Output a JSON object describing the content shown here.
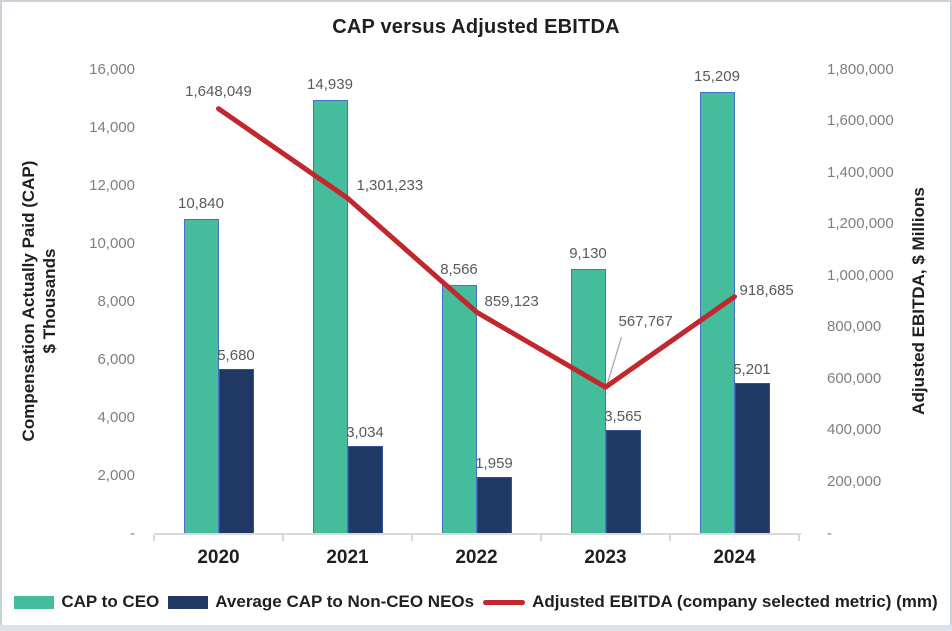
{
  "title": "CAP versus Adjusted EBITDA",
  "colors": {
    "ceo_bar": "#45BD9C",
    "ceo_bar_border": "#4472C4",
    "neo_bar": "#1F3864",
    "neo_bar_border": "#31539B",
    "ebitda_line": "#C2272D",
    "tick_label": "#7F7F7F",
    "data_label": "#595959",
    "axis_line": "#D9D9D9",
    "leader_line": "#ABABAB"
  },
  "left_axis": {
    "title_line1": "Compensation Actually Paid (CAP)",
    "title_line2": "$ Thousands",
    "tick_labels": [
      "16,000",
      "14,000",
      "12,000",
      "10,000",
      "8,000",
      "6,000",
      "4,000",
      "2,000",
      "-"
    ]
  },
  "right_axis": {
    "title": "Adjusted EBITDA, $ Millions",
    "tick_labels": [
      "1,800,000",
      "1,600,000",
      "1,400,000",
      "1,200,000",
      "1,000,000",
      "800,000",
      "600,000",
      "400,000",
      "200,000",
      "-"
    ]
  },
  "legend": {
    "items": [
      {
        "label": "CAP to CEO",
        "swatch": "bar",
        "color": "#45BD9C"
      },
      {
        "label": "Average CAP to Non-CEO NEOs",
        "swatch": "bar",
        "color": "#1F3864"
      },
      {
        "label": "Adjusted EBITDA (company selected metric) (mm)",
        "swatch": "line",
        "color": "#C2272D"
      }
    ]
  },
  "chart_data": {
    "type": "bar",
    "subtype": "combo-bar-line-dual-axis",
    "title": "CAP versus Adjusted EBITDA",
    "categories": [
      "2020",
      "2021",
      "2022",
      "2023",
      "2024"
    ],
    "series": [
      {
        "name": "CAP to CEO",
        "type": "bar",
        "axis": "left",
        "values": [
          10840,
          14939,
          8566,
          9130,
          15209
        ],
        "labels": [
          "10,840",
          "14,939",
          "8,566",
          "9,130",
          "15,209"
        ]
      },
      {
        "name": "Average CAP to Non-CEO NEOs",
        "type": "bar",
        "axis": "left",
        "values": [
          5680,
          3034,
          1959,
          3565,
          5201
        ],
        "labels": [
          "5,680",
          "3,034",
          "1,959",
          "3,565",
          "5,201"
        ]
      },
      {
        "name": "Adjusted EBITDA (company selected metric) (mm)",
        "type": "line",
        "axis": "right",
        "values": [
          1648049,
          1301233,
          859123,
          567767,
          918685
        ],
        "labels": [
          "1,648,049",
          "1,301,233",
          "859,123",
          "567,767",
          "918,685"
        ]
      }
    ],
    "left_ylabel": "Compensation Actually Paid (CAP) $ Thousands",
    "right_ylabel": "Adjusted EBITDA, $ Millions",
    "left_ylim": [
      0,
      16000
    ],
    "left_step": 2000,
    "right_ylim": [
      0,
      1800000
    ],
    "right_step": 200000,
    "grid": false,
    "legend_position": "bottom"
  }
}
